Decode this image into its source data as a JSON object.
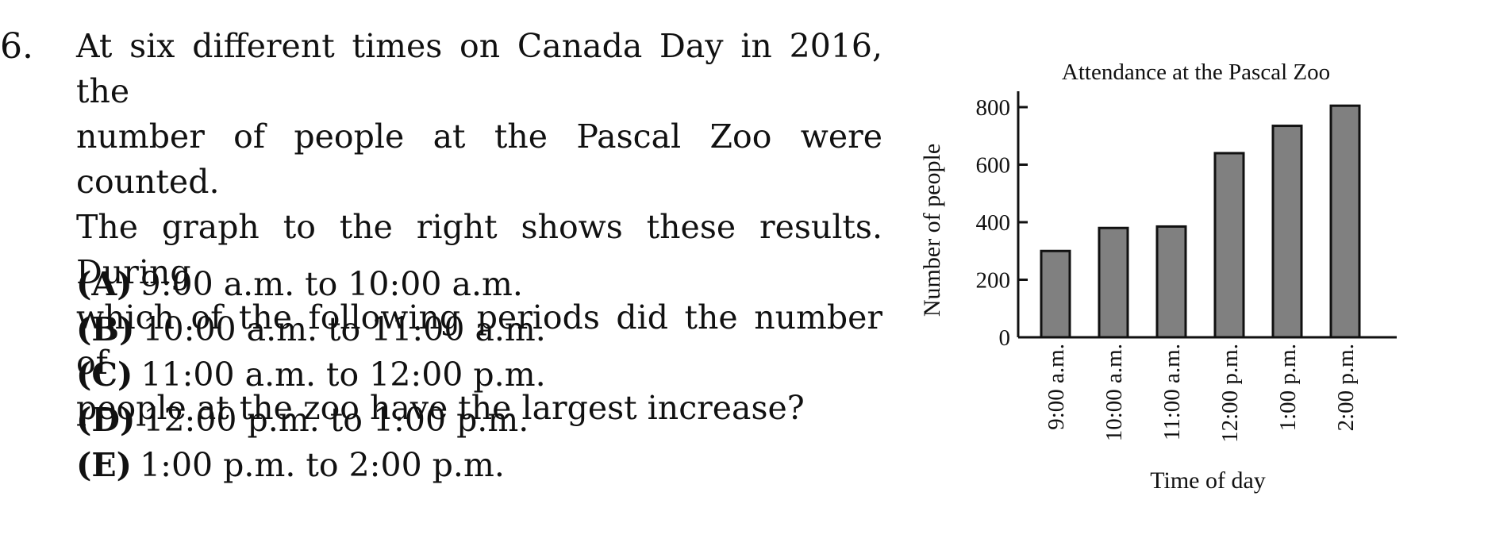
{
  "question": {
    "number": "6.",
    "stem_lines": [
      "At six different times on Canada Day in 2016, the",
      "number of people at the Pascal Zoo were counted.",
      "The graph to the right shows these results. During",
      "which of the following periods did the number of",
      "people at the zoo have the largest increase?"
    ],
    "choices": [
      {
        "letter": "(A)",
        "text": "9:00 a.m. to 10:00 a.m."
      },
      {
        "letter": "(B)",
        "text": "10:00 a.m. to 11:00 a.m."
      },
      {
        "letter": "(C)",
        "text": "11:00 a.m. to 12:00 p.m."
      },
      {
        "letter": "(D)",
        "text": "12:00 p.m. to 1:00 p.m."
      },
      {
        "letter": "(E)",
        "text": "1:00 p.m. to 2:00 p.m."
      }
    ]
  },
  "chart_data": {
    "type": "bar",
    "title": "Attendance at the Pascal Zoo",
    "xlabel": "Time of day",
    "ylabel": "Number of people",
    "categories": [
      "9:00 a.m.",
      "10:00 a.m.",
      "11:00 a.m.",
      "12:00 p.m.",
      "1:00 p.m.",
      "2:00 p.m."
    ],
    "values": [
      300,
      380,
      385,
      640,
      735,
      805
    ],
    "ylim": [
      0,
      850
    ],
    "yticks": [
      0,
      200,
      400,
      600,
      800
    ],
    "grid": false,
    "bar_color": "#808080"
  }
}
